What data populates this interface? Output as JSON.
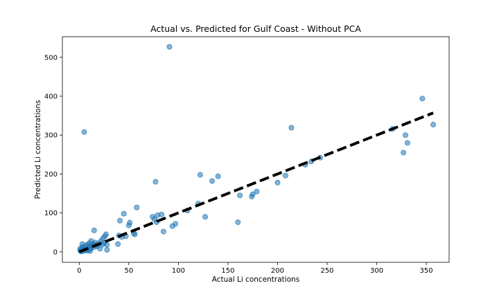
{
  "chart_data": {
    "type": "scatter",
    "title": "Actual vs. Predicted for Gulf Coast - Without PCA",
    "xlabel": "Actual Li concentrations",
    "ylabel": "Predicted Li concentrations",
    "xlim": [
      -17,
      373
    ],
    "ylim": [
      -27,
      553
    ],
    "xticks": [
      0,
      50,
      100,
      150,
      200,
      250,
      300,
      350
    ],
    "yticks": [
      0,
      100,
      200,
      300,
      400,
      500
    ],
    "grid": false,
    "legend": "none",
    "colors": {
      "points": "#1f77b4",
      "reference_line": "#000000"
    },
    "reference_line": {
      "x": [
        0,
        357
      ],
      "y": [
        0,
        357
      ]
    },
    "points": [
      {
        "x": 1,
        "y": 3
      },
      {
        "x": 1,
        "y": 8
      },
      {
        "x": 2,
        "y": 5
      },
      {
        "x": 2,
        "y": 1
      },
      {
        "x": 3,
        "y": 12
      },
      {
        "x": 3,
        "y": 20
      },
      {
        "x": 4,
        "y": 2
      },
      {
        "x": 4,
        "y": 6
      },
      {
        "x": 5,
        "y": 10
      },
      {
        "x": 5,
        "y": 308
      },
      {
        "x": 6,
        "y": 4
      },
      {
        "x": 6,
        "y": 15
      },
      {
        "x": 7,
        "y": 8
      },
      {
        "x": 8,
        "y": 18
      },
      {
        "x": 8,
        "y": 3
      },
      {
        "x": 9,
        "y": 12
      },
      {
        "x": 10,
        "y": 6
      },
      {
        "x": 10,
        "y": 22
      },
      {
        "x": 11,
        "y": 2
      },
      {
        "x": 11,
        "y": 14
      },
      {
        "x": 12,
        "y": 9
      },
      {
        "x": 12,
        "y": 28
      },
      {
        "x": 13,
        "y": 16
      },
      {
        "x": 14,
        "y": 20
      },
      {
        "x": 15,
        "y": 12
      },
      {
        "x": 15,
        "y": 55
      },
      {
        "x": 16,
        "y": 24
      },
      {
        "x": 17,
        "y": 18
      },
      {
        "x": 18,
        "y": 14
      },
      {
        "x": 20,
        "y": 22
      },
      {
        "x": 21,
        "y": 8
      },
      {
        "x": 22,
        "y": 28
      },
      {
        "x": 23,
        "y": 18
      },
      {
        "x": 24,
        "y": 35
      },
      {
        "x": 25,
        "y": 22
      },
      {
        "x": 26,
        "y": 40
      },
      {
        "x": 27,
        "y": 45
      },
      {
        "x": 28,
        "y": 18
      },
      {
        "x": 28,
        "y": 5
      },
      {
        "x": 39,
        "y": 20
      },
      {
        "x": 40,
        "y": 42
      },
      {
        "x": 41,
        "y": 80
      },
      {
        "x": 43,
        "y": 38
      },
      {
        "x": 45,
        "y": 98
      },
      {
        "x": 47,
        "y": 40
      },
      {
        "x": 50,
        "y": 68
      },
      {
        "x": 51,
        "y": 75
      },
      {
        "x": 55,
        "y": 48
      },
      {
        "x": 56,
        "y": 45
      },
      {
        "x": 58,
        "y": 114
      },
      {
        "x": 74,
        "y": 90
      },
      {
        "x": 76,
        "y": 84
      },
      {
        "x": 77,
        "y": 180
      },
      {
        "x": 78,
        "y": 76
      },
      {
        "x": 79,
        "y": 94
      },
      {
        "x": 83,
        "y": 96
      },
      {
        "x": 85,
        "y": 52
      },
      {
        "x": 91,
        "y": 527
      },
      {
        "x": 94,
        "y": 66
      },
      {
        "x": 97,
        "y": 72
      },
      {
        "x": 109,
        "y": 106
      },
      {
        "x": 120,
        "y": 124
      },
      {
        "x": 122,
        "y": 198
      },
      {
        "x": 127,
        "y": 90
      },
      {
        "x": 134,
        "y": 182
      },
      {
        "x": 140,
        "y": 194
      },
      {
        "x": 160,
        "y": 76
      },
      {
        "x": 162,
        "y": 145
      },
      {
        "x": 174,
        "y": 142
      },
      {
        "x": 175,
        "y": 148
      },
      {
        "x": 179,
        "y": 155
      },
      {
        "x": 200,
        "y": 178
      },
      {
        "x": 208,
        "y": 196
      },
      {
        "x": 214,
        "y": 319
      },
      {
        "x": 228,
        "y": 224
      },
      {
        "x": 234,
        "y": 232
      },
      {
        "x": 243,
        "y": 242
      },
      {
        "x": 316,
        "y": 316
      },
      {
        "x": 327,
        "y": 255
      },
      {
        "x": 329,
        "y": 300
      },
      {
        "x": 331,
        "y": 280
      },
      {
        "x": 346,
        "y": 394
      },
      {
        "x": 357,
        "y": 327
      }
    ]
  }
}
